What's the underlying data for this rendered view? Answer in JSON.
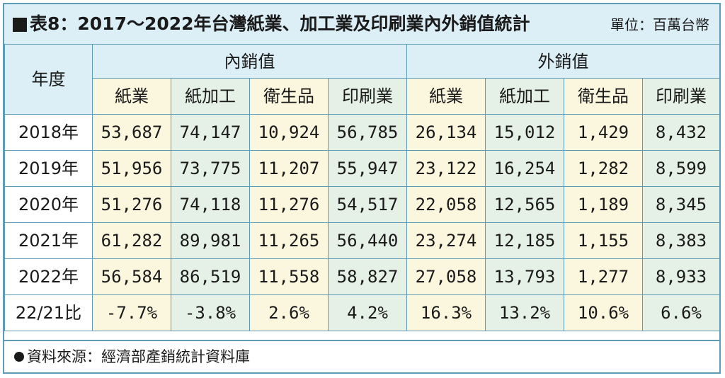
{
  "title": "表8：2017～2022年台灣紙業、加工業及印刷業內外銷值統計",
  "unit": "單位：百萬台幣",
  "table": {
    "year_header": "年度",
    "domestic_header": "內銷值",
    "export_header": "外銷值",
    "sub_headers": [
      "紙業",
      "紙加工",
      "衛生品",
      "印刷業",
      "紙業",
      "紙加工",
      "衛生品",
      "印刷業"
    ],
    "rows": [
      {
        "year": "2018年",
        "values": [
          "53,687",
          "74,147",
          "10,924",
          "56,785",
          "26,134",
          "15,012",
          "1,429",
          "8,432"
        ]
      },
      {
        "year": "2019年",
        "values": [
          "51,956",
          "73,775",
          "11,207",
          "55,947",
          "23,122",
          "16,254",
          "1,282",
          "8,599"
        ]
      },
      {
        "year": "2020年",
        "values": [
          "51,276",
          "74,118",
          "11,276",
          "54,517",
          "22,058",
          "12,565",
          "1,189",
          "8,345"
        ]
      },
      {
        "year": "2021年",
        "values": [
          "61,282",
          "89,981",
          "11,265",
          "56,440",
          "23,274",
          "12,185",
          "1,155",
          "8,383"
        ]
      },
      {
        "year": "2022年",
        "values": [
          "56,584",
          "86,519",
          "11,558",
          "58,827",
          "27,058",
          "13,793",
          "1,277",
          "8,933"
        ]
      },
      {
        "year": "22/21比",
        "values": [
          "-7.7%",
          "-3.8%",
          "2.6%",
          "4.2%",
          "16.3%",
          "13.2%",
          "10.6%",
          "6.6%"
        ]
      }
    ]
  },
  "source": "資料來源：經濟部產銷統計資料庫",
  "colors": {
    "border": "#5e9cb6",
    "header_blue": "#dceef6",
    "cream": "#fbf7df",
    "green": "#e5f0e6"
  }
}
